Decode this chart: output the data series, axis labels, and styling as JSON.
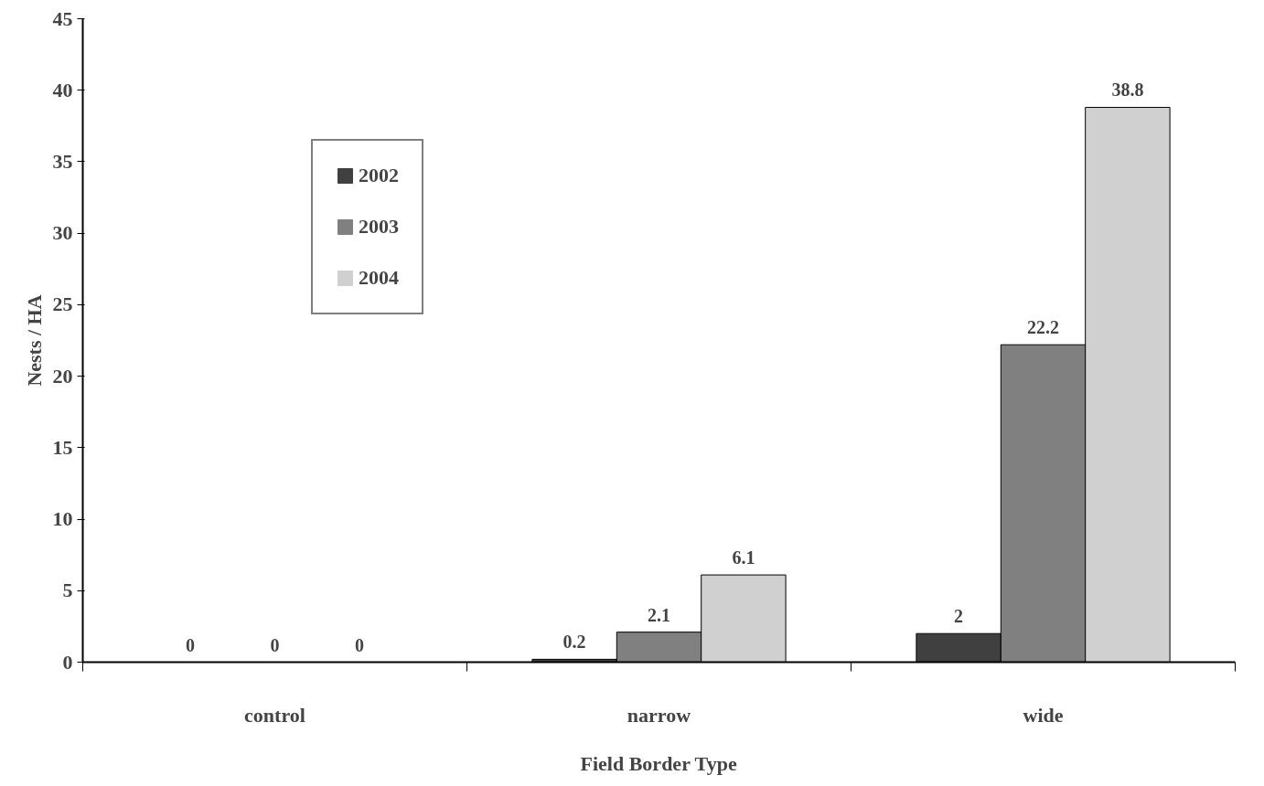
{
  "chart_data": {
    "type": "bar",
    "xlabel": "Field Border Type",
    "ylabel": "Nests / HA",
    "categories": [
      "control",
      "narrow",
      "wide"
    ],
    "series": [
      {
        "name": "2002",
        "color": "#404040",
        "values": [
          0,
          0.2,
          2
        ]
      },
      {
        "name": "2003",
        "color": "#808080",
        "values": [
          0,
          2.1,
          22.2
        ]
      },
      {
        "name": "2004",
        "color": "#d0d0d0",
        "values": [
          0,
          6.1,
          38.8
        ]
      }
    ],
    "ylim": [
      0,
      45
    ],
    "yticks": [
      0,
      5,
      10,
      15,
      20,
      25,
      30,
      35,
      40,
      45
    ],
    "data_labels": true,
    "grid": false,
    "legend": "top left"
  }
}
